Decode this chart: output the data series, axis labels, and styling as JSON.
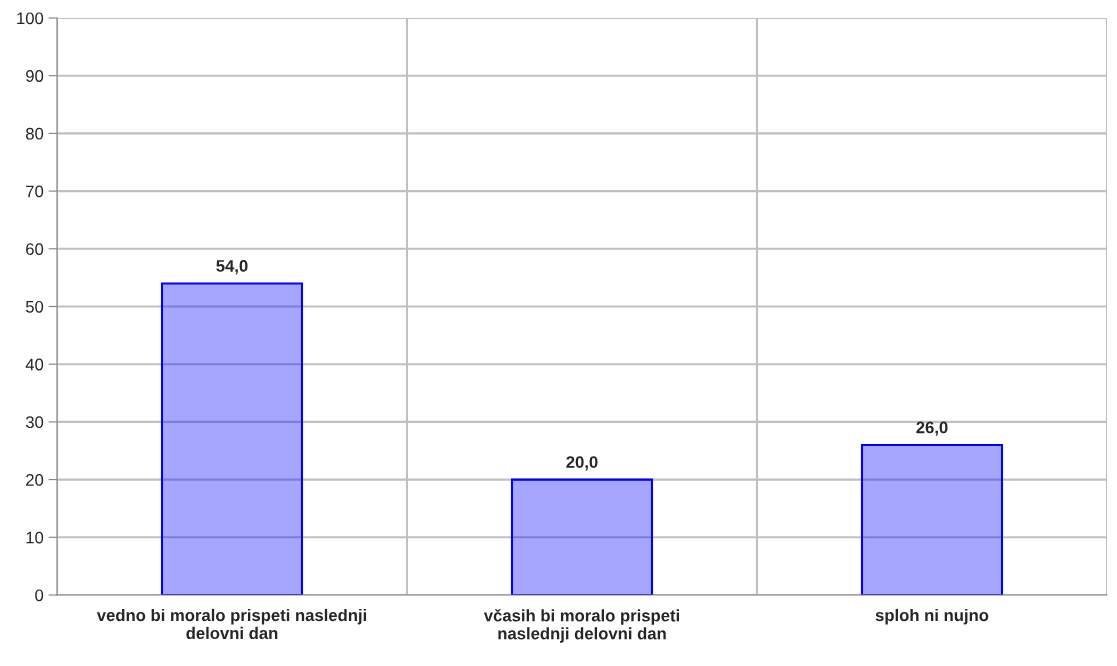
{
  "chart_data": {
    "type": "bar",
    "categories": [
      "vedno bi moralo prispeti naslednji\ndelovni dan",
      "včasih bi moralo prispeti\nnaslednji delovni dan",
      "sploh ni nujno"
    ],
    "values": [
      54.0,
      20.0,
      26.0
    ],
    "value_labels": [
      "54,0",
      "20,0",
      "26,0"
    ],
    "color": "#0000ff",
    "ylim": [
      0,
      100
    ],
    "yticks": [
      0,
      10,
      20,
      30,
      40,
      50,
      60,
      70,
      80,
      90,
      100
    ],
    "grid": true,
    "legend": false
  }
}
